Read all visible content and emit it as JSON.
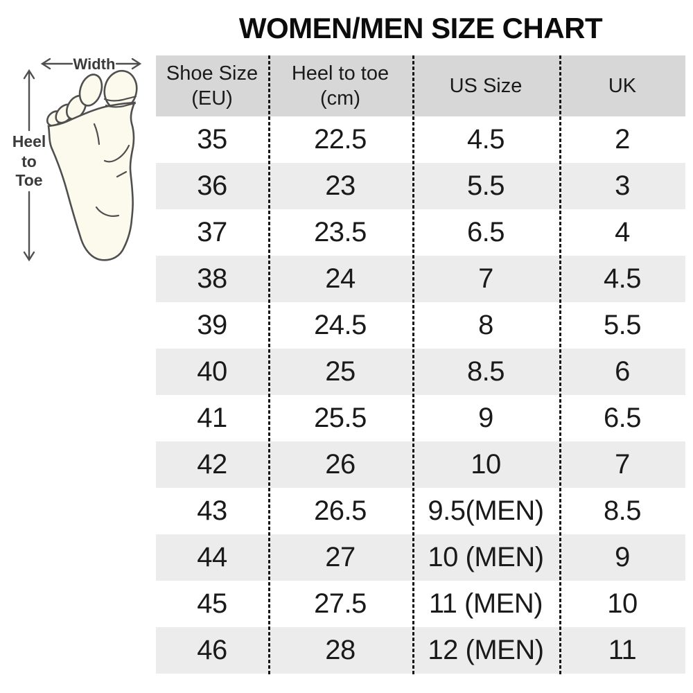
{
  "title": "WOMEN/MEN SIZE CHART",
  "diagram": {
    "width_label": "Width",
    "heel_lines": [
      "Heel",
      "to",
      "Toe"
    ]
  },
  "table": {
    "display_headers": [
      "Shoe Size\n(EU)",
      "Heel to toe\n(cm)",
      "US Size",
      "UK"
    ]
  },
  "chart_data": {
    "type": "table",
    "title": "WOMEN/MEN SIZE CHART",
    "columns": [
      "Shoe Size (EU)",
      "Heel to toe (cm)",
      "US Size",
      "UK"
    ],
    "rows": [
      [
        "35",
        "22.5",
        "4.5",
        "2"
      ],
      [
        "36",
        "23",
        "5.5",
        "3"
      ],
      [
        "37",
        "23.5",
        "6.5",
        "4"
      ],
      [
        "38",
        "24",
        "7",
        "4.5"
      ],
      [
        "39",
        "24.5",
        "8",
        "5.5"
      ],
      [
        "40",
        "25",
        "8.5",
        "6"
      ],
      [
        "41",
        "25.5",
        "9",
        "6.5"
      ],
      [
        "42",
        "26",
        "10",
        "7"
      ],
      [
        "43",
        "26.5",
        "9.5(MEN)",
        "8.5"
      ],
      [
        "44",
        "27",
        "10 (MEN)",
        "9"
      ],
      [
        "45",
        "27.5",
        "11 (MEN)",
        "10"
      ],
      [
        "46",
        "28",
        "12 (MEN)",
        "11"
      ]
    ]
  },
  "colors": {
    "header_bg": "#d7d7d7",
    "row_bg": "#ffffff",
    "row_alt_bg": "#ececec",
    "text": "#1a1a1a",
    "divider": "#161616",
    "foot_fill": "#fbfaec",
    "outline": "#4f4f4f"
  }
}
